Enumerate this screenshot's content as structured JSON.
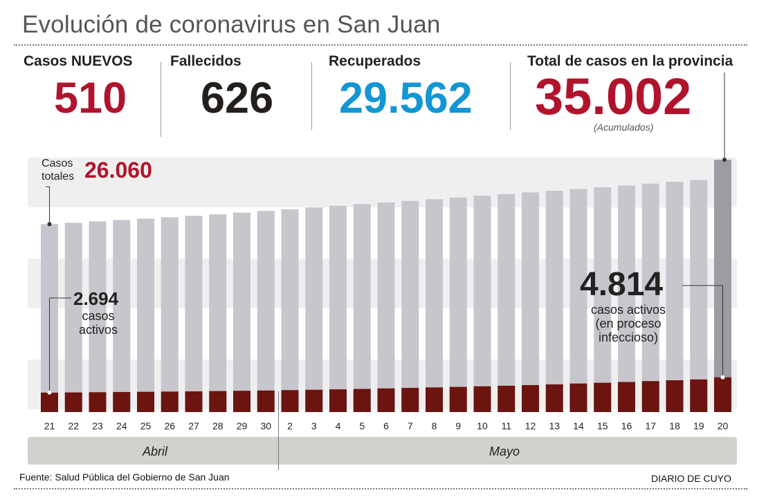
{
  "header": {
    "title": "Evolución de coronavirus en San Juan"
  },
  "stats": {
    "nuevos": {
      "label": "Casos NUEVOS",
      "value": "510",
      "color": "#b0142c"
    },
    "fallecidos": {
      "label": "Fallecidos",
      "value": "626",
      "color": "#231f1c"
    },
    "recuperados": {
      "label": "Recuperados",
      "value": "29.562",
      "color": "#1296d4"
    },
    "total": {
      "label": "Total de casos en la provincia",
      "value": "35.002",
      "note": "(Acumulados)",
      "color": "#b0142c"
    }
  },
  "annotations": {
    "totales_label_line1": "Casos",
    "totales_label_line2": "totales",
    "totales_value": "26.060",
    "start_active_value": "2.694",
    "start_active_line1": "casos",
    "start_active_line2": "activos",
    "end_active_value": "4.814",
    "end_active_line1": "casos activos",
    "end_active_line2": "(en proceso",
    "end_active_line3": "infeccioso)"
  },
  "months": {
    "april": "Abril",
    "may": "Mayo"
  },
  "footer": {
    "source": "Fuente: Salud Pública del Gobierno de San Juan",
    "brand": "DIARIO DE CUYO"
  },
  "colors": {
    "total_bar": "#c7c6cc",
    "total_bar_last": "#9d9ca2",
    "active_bar": "#6b1410",
    "band": "#efefef",
    "month_bar": "#d2d1cc"
  },
  "chart_data": {
    "type": "bar",
    "x": [
      "21",
      "22",
      "23",
      "24",
      "25",
      "26",
      "27",
      "28",
      "29",
      "30",
      "2",
      "3",
      "4",
      "5",
      "6",
      "7",
      "8",
      "9",
      "10",
      "11",
      "12",
      "13",
      "14",
      "15",
      "16",
      "17",
      "18",
      "19",
      "20"
    ],
    "series": [
      {
        "name": "Casos totales",
        "values": [
          26060,
          26250,
          26440,
          26630,
          26820,
          27020,
          27220,
          27420,
          27660,
          27890,
          28130,
          28370,
          28610,
          28840,
          29070,
          29290,
          29520,
          29760,
          30000,
          30230,
          30470,
          30700,
          30940,
          31180,
          31420,
          31680,
          31940,
          32170,
          35002
        ]
      },
      {
        "name": "casos activos",
        "values": [
          2694,
          2720,
          2750,
          2780,
          2810,
          2840,
          2870,
          2910,
          2950,
          2990,
          3040,
          3090,
          3150,
          3210,
          3280,
          3350,
          3420,
          3490,
          3570,
          3650,
          3740,
          3840,
          3960,
          4060,
          4170,
          4290,
          4410,
          4520,
          4814
        ]
      }
    ],
    "ylim": [
      0,
      36000
    ]
  }
}
